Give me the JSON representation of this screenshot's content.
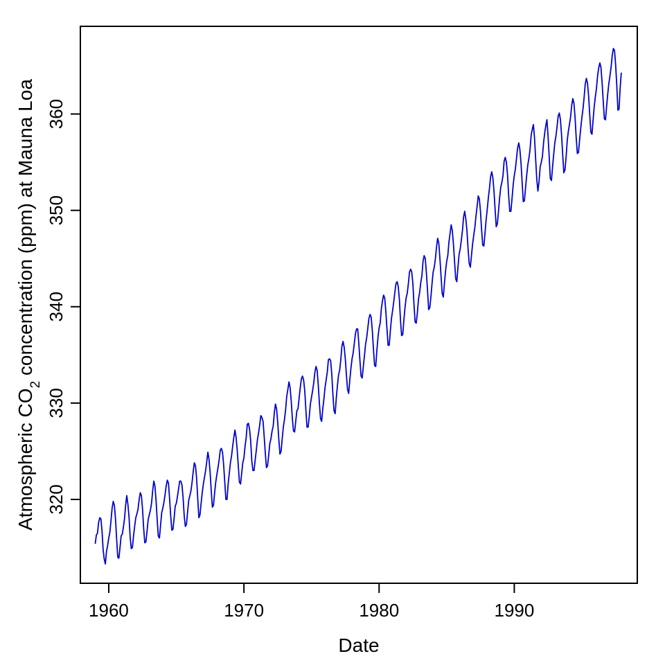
{
  "chart_data": {
    "type": "line",
    "title": "",
    "xlabel": "Date",
    "ylabel": {
      "prefix": "Atmospheric CO",
      "subscript": "2",
      "suffix": " concentration (ppm) at Mauna Loa"
    },
    "xlim": [
      1957.9,
      1999.1
    ],
    "ylim": [
      311.3,
      369.1
    ],
    "x_ticks": [
      1960,
      1970,
      1980,
      1990
    ],
    "y_ticks": [
      320,
      330,
      340,
      350,
      360
    ],
    "grid": false,
    "line_color": "#0000cc",
    "series": [
      {
        "x_start": 1959.0,
        "x_step": 0.08333,
        "values": [
          315.4,
          316.3,
          316.5,
          317.6,
          318.1,
          318.0,
          316.8,
          314.8,
          313.8,
          313.3,
          314.6,
          315.2,
          316.0,
          316.6,
          317.8,
          319.1,
          319.8,
          319.4,
          318.0,
          315.9,
          314.0,
          313.9,
          315.0,
          316.2,
          316.4,
          317.1,
          318.0,
          319.4,
          320.4,
          319.5,
          318.2,
          316.1,
          314.9,
          315.0,
          316.2,
          317.2,
          318.1,
          318.5,
          319.0,
          320.0,
          320.7,
          320.4,
          319.0,
          317.0,
          315.5,
          315.6,
          316.7,
          317.9,
          318.4,
          318.9,
          319.6,
          320.9,
          321.9,
          321.4,
          319.9,
          317.9,
          316.2,
          316.0,
          317.3,
          318.6,
          319.1,
          319.7,
          320.5,
          321.4,
          322.0,
          321.7,
          320.1,
          318.3,
          316.8,
          316.9,
          318.0,
          319.3,
          319.6,
          320.3,
          321.1,
          321.9,
          321.9,
          321.5,
          320.2,
          318.3,
          317.2,
          317.4,
          318.7,
          319.9,
          320.4,
          320.9,
          321.8,
          322.9,
          323.8,
          323.5,
          322.2,
          320.1,
          318.1,
          318.4,
          319.6,
          320.7,
          321.6,
          322.3,
          323.0,
          323.9,
          324.9,
          324.2,
          322.8,
          320.9,
          319.2,
          319.4,
          320.7,
          321.8,
          322.6,
          323.3,
          324.1,
          325.1,
          325.3,
          324.9,
          323.6,
          321.8,
          320.0,
          320.0,
          321.6,
          322.7,
          323.8,
          324.5,
          325.5,
          326.4,
          327.2,
          326.5,
          325.2,
          323.5,
          321.8,
          321.6,
          322.7,
          323.8,
          324.3,
          325.5,
          326.4,
          327.8,
          327.9,
          327.3,
          326.1,
          324.0,
          323.0,
          323.0,
          324.1,
          325.1,
          326.2,
          326.9,
          327.7,
          328.7,
          328.5,
          328.1,
          326.5,
          324.8,
          323.3,
          323.5,
          324.6,
          325.8,
          326.3,
          327.1,
          327.6,
          329.0,
          329.9,
          329.4,
          328.0,
          326.2,
          324.7,
          325.0,
          326.3,
          327.5,
          328.3,
          329.3,
          330.7,
          331.4,
          332.2,
          331.6,
          330.2,
          328.4,
          327.1,
          327.0,
          328.1,
          329.2,
          329.4,
          330.5,
          331.6,
          332.5,
          332.8,
          332.4,
          331.3,
          329.3,
          327.5,
          327.5,
          328.6,
          329.9,
          330.6,
          331.3,
          332.1,
          333.2,
          333.8,
          333.4,
          331.9,
          330.0,
          328.4,
          328.1,
          329.4,
          330.4,
          331.6,
          332.4,
          333.2,
          334.5,
          334.6,
          334.4,
          333.0,
          330.9,
          329.2,
          328.9,
          330.5,
          331.8,
          332.9,
          333.4,
          334.5,
          335.9,
          336.4,
          335.8,
          334.6,
          332.9,
          331.4,
          331.0,
          332.4,
          333.6,
          334.6,
          335.2,
          336.2,
          337.2,
          337.7,
          337.7,
          336.2,
          334.4,
          332.8,
          332.6,
          333.8,
          334.9,
          336.1,
          336.8,
          337.8,
          338.8,
          339.2,
          338.9,
          337.5,
          335.6,
          333.9,
          333.8,
          335.4,
          336.8,
          337.8,
          338.3,
          339.8,
          340.6,
          341.2,
          340.9,
          339.5,
          337.7,
          336.0,
          336.0,
          337.5,
          338.8,
          339.6,
          340.5,
          341.5,
          342.4,
          342.6,
          342.1,
          340.8,
          338.6,
          337.0,
          337.1,
          338.6,
          339.9,
          340.9,
          341.4,
          342.4,
          343.6,
          343.9,
          343.6,
          342.4,
          340.2,
          338.4,
          338.3,
          339.4,
          340.8,
          341.5,
          342.5,
          343.2,
          344.7,
          345.3,
          345.0,
          343.5,
          341.7,
          339.7,
          339.9,
          341.0,
          342.4,
          343.6,
          344.1,
          345.0,
          346.2,
          347.1,
          346.6,
          345.0,
          343.2,
          341.4,
          341.0,
          342.4,
          343.7,
          344.7,
          345.3,
          346.7,
          347.6,
          348.5,
          347.9,
          346.5,
          344.7,
          342.9,
          342.6,
          344.1,
          345.4,
          346.0,
          346.9,
          347.9,
          349.3,
          349.9,
          349.1,
          347.9,
          346.0,
          344.5,
          344.1,
          345.3,
          346.5,
          347.4,
          348.2,
          349.4,
          350.4,
          351.5,
          351.2,
          349.9,
          348.0,
          346.4,
          346.3,
          347.6,
          349.0,
          350.1,
          351.3,
          352.3,
          353.5,
          354.0,
          353.4,
          352.0,
          350.1,
          348.3,
          348.6,
          349.9,
          351.3,
          352.4,
          352.9,
          353.6,
          355.1,
          355.5,
          355.0,
          353.7,
          351.6,
          349.9,
          349.9,
          351.2,
          352.6,
          353.6,
          354.3,
          355.4,
          356.5,
          357.0,
          356.3,
          354.9,
          352.9,
          350.9,
          351.0,
          352.3,
          353.6,
          354.7,
          355.4,
          356.3,
          357.8,
          358.4,
          358.9,
          357.5,
          355.3,
          353.2,
          352.0,
          353.0,
          354.5,
          355.0,
          355.6,
          357.0,
          358.0,
          358.8,
          359.4,
          357.7,
          355.6,
          353.3,
          353.1,
          354.5,
          355.8,
          357.0,
          357.7,
          358.7,
          359.8,
          360.1,
          359.4,
          357.8,
          355.8,
          353.9,
          354.2,
          355.5,
          357.2,
          358.2,
          358.9,
          359.7,
          360.9,
          361.6,
          361.1,
          359.6,
          357.5,
          355.9,
          356.0,
          357.3,
          358.5,
          359.6,
          360.5,
          361.7,
          363.1,
          363.7,
          363.2,
          361.9,
          359.9,
          358.1,
          357.9,
          359.4,
          360.8,
          361.8,
          362.7,
          364.0,
          364.8,
          365.3,
          364.8,
          363.2,
          361.3,
          359.5,
          359.4,
          360.8,
          362.1,
          363.2,
          364.0,
          364.9,
          366.1,
          366.8,
          366.6,
          365.1,
          363.0,
          360.4,
          360.5,
          362.7,
          364.3
        ]
      }
    ]
  }
}
